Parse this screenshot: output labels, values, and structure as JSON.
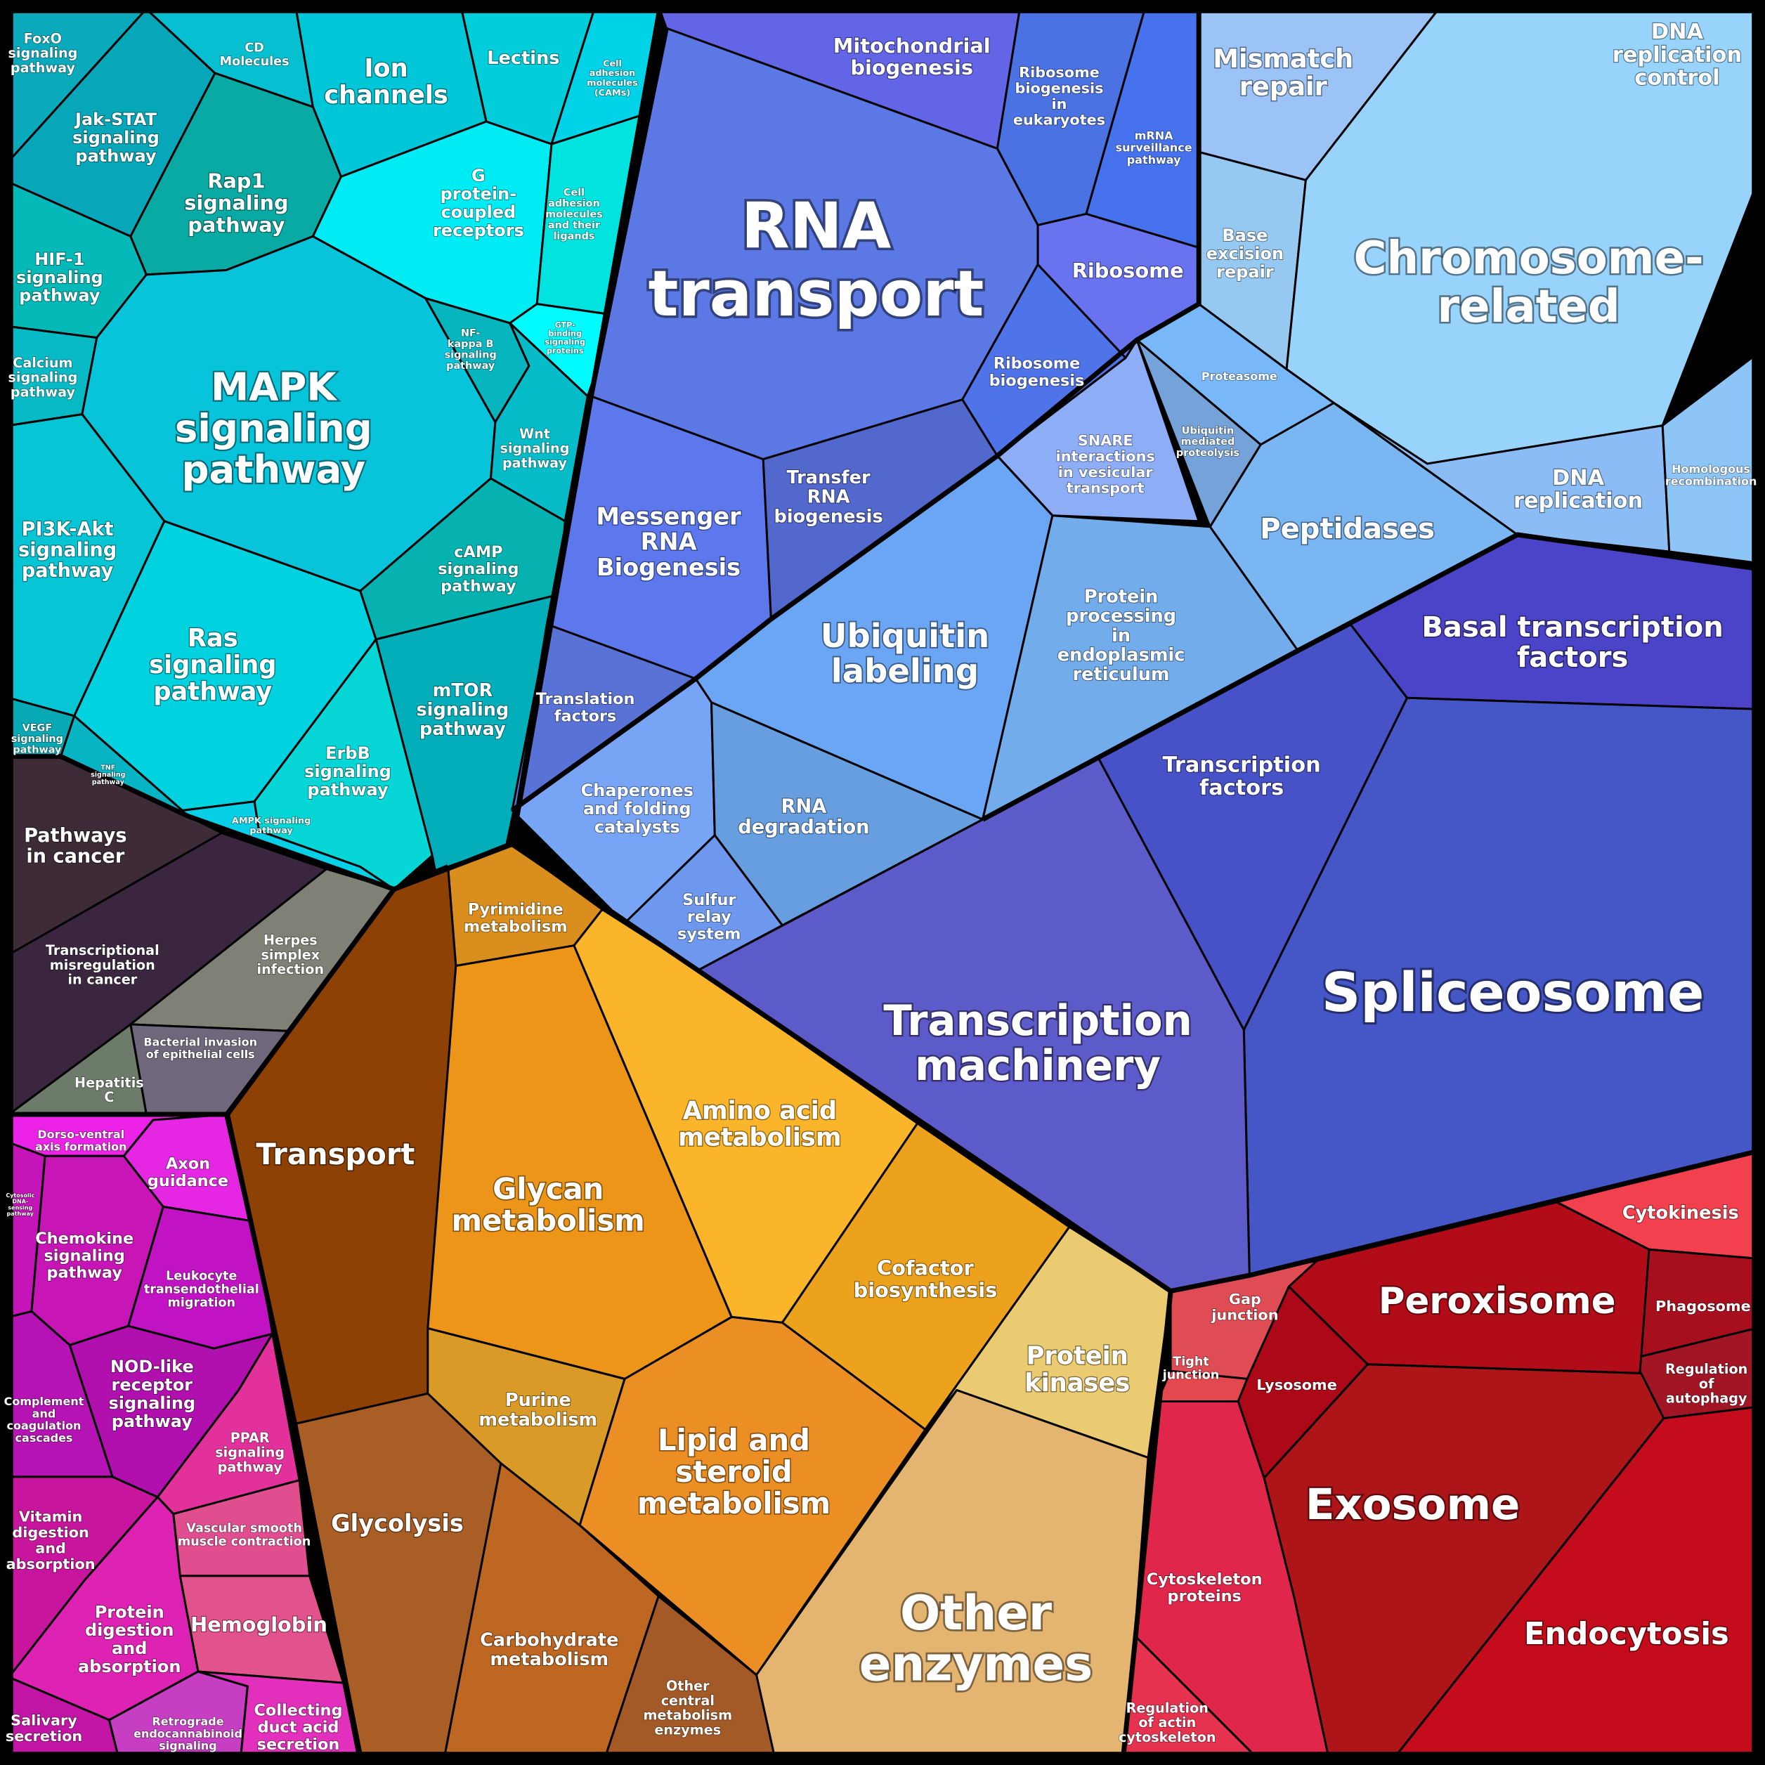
{
  "title": "",
  "groups": [
    {
      "id": "signaling",
      "cells": [
        {
          "label": [
            "FoxO",
            "signaling",
            "pathway"
          ],
          "color": "#0aa9bb"
        },
        {
          "label": [
            "Jak-STAT",
            "signaling",
            "pathway"
          ],
          "color": "#07a7b9"
        },
        {
          "label": [
            "CD",
            "Molecules"
          ],
          "color": "#06bfd0"
        },
        {
          "label": [
            "Ion",
            "channels"
          ],
          "color": "#00c7d8"
        },
        {
          "label": [
            "Lectins"
          ],
          "color": "#02cedb"
        },
        {
          "label": [
            "Cell",
            "adhesion",
            "molecules",
            "(CAMs)"
          ],
          "color": "#00d3e8"
        },
        {
          "label": [
            "Rap1",
            "signaling",
            "pathway"
          ],
          "color": "#08aaa3"
        },
        {
          "label": [
            "G",
            "protein-",
            "coupled",
            "receptors"
          ],
          "color": "#00ecf5"
        },
        {
          "label": [
            "Cell",
            "adhesion",
            "molecules",
            "and their",
            "ligands"
          ],
          "color": "#00e3df"
        },
        {
          "label": [
            "GTP-",
            "binding",
            "signaling",
            "proteins"
          ],
          "color": "#00fbff"
        },
        {
          "label": [
            "HIF-1",
            "signaling",
            "pathway"
          ],
          "color": "#04b9b8"
        },
        {
          "label": [
            "Calcium",
            "signaling",
            "pathway"
          ],
          "color": "#07bac6"
        },
        {
          "label": [
            "MAPK",
            "signaling",
            "pathway"
          ],
          "color": "#07c4db"
        },
        {
          "label": [
            "NF-",
            "kappa B",
            "signaling",
            "pathway"
          ],
          "color": "#07b5bf"
        },
        {
          "label": [
            "Wnt",
            "signaling",
            "pathway"
          ],
          "color": "#05bcc8"
        },
        {
          "label": [
            "PI3K-Akt",
            "signaling",
            "pathway"
          ],
          "color": "#06c5d5"
        },
        {
          "label": [
            "cAMP",
            "signaling",
            "pathway"
          ],
          "color": "#05b2b0"
        },
        {
          "label": [
            "Ras",
            "signaling",
            "pathway"
          ],
          "color": "#00d3df"
        },
        {
          "label": [
            "mTOR",
            "signaling",
            "pathway"
          ],
          "color": "#03aebb"
        },
        {
          "label": [
            "ErbB",
            "signaling",
            "pathway"
          ],
          "color": "#06d6d6"
        },
        {
          "label": [
            "VEGF",
            "signaling",
            "pathway"
          ],
          "color": "#06a9b4"
        },
        {
          "label": [
            "TNF",
            "signaling",
            "pathway"
          ],
          "color": "#07b4c3"
        },
        {
          "label": [
            "AMPK signaling",
            "pathway"
          ],
          "color": "#06cfe6"
        }
      ]
    },
    {
      "id": "disease",
      "cells": [
        {
          "label": [
            "Pathways",
            "in cancer"
          ],
          "color": "#3d2c37"
        },
        {
          "label": [
            "Transcriptional",
            "misregulation",
            "in cancer"
          ],
          "color": "#3b2640"
        },
        {
          "label": [
            "Herpes",
            "simplex",
            "infection"
          ],
          "color": "#7f8177"
        },
        {
          "label": [
            "Bacterial invasion",
            "of epithelial cells"
          ],
          "color": "#6f677b"
        },
        {
          "label": [
            "Hepatitis",
            "C"
          ],
          "color": "#6d7b6b"
        }
      ]
    },
    {
      "id": "organismal",
      "cells": [
        {
          "label": [
            "Dorso-ventral",
            "axis formation"
          ],
          "color": "#ed22e8"
        },
        {
          "label": [
            "Axon",
            "guidance"
          ],
          "color": "#e527e4"
        },
        {
          "label": [
            "Cytosolic",
            "DNA-",
            "sensing",
            "pathway"
          ],
          "color": "#c514b8"
        },
        {
          "label": [
            "Chemokine",
            "signaling",
            "pathway"
          ],
          "color": "#c715b6"
        },
        {
          "label": [
            "Leukocyte",
            "transendothelial",
            "migration"
          ],
          "color": "#c112c4"
        },
        {
          "label": [
            "Complement",
            "and",
            "coagulation",
            "cascades"
          ],
          "color": "#b513b4"
        },
        {
          "label": [
            "NOD-like",
            "receptor",
            "signaling",
            "pathway"
          ],
          "color": "#b10fae"
        },
        {
          "label": [
            "PPAR",
            "signaling",
            "pathway"
          ],
          "color": "#e2319a"
        },
        {
          "label": [
            "Vitamin",
            "digestion",
            "and",
            "absorption"
          ],
          "color": "#c7169d"
        },
        {
          "label": [
            "Vascular smooth",
            "muscle contraction"
          ],
          "color": "#e04e8f"
        },
        {
          "label": [
            "Protein",
            "digestion",
            "and",
            "absorption"
          ],
          "color": "#de22b3"
        },
        {
          "label": [
            "Hemoglobin"
          ],
          "color": "#e2528c"
        },
        {
          "label": [
            "Salivary",
            "secretion"
          ],
          "color": "#c215a5"
        },
        {
          "label": [
            "Retrograde",
            "endocannabinoid",
            "signaling"
          ],
          "color": "#c63fc3"
        },
        {
          "label": [
            "Collecting",
            "duct acid",
            "secretion"
          ],
          "color": "#e22fbc"
        }
      ]
    },
    {
      "id": "genetic-information",
      "cells": [
        {
          "label": [
            "Mitochondrial",
            "biogenesis"
          ],
          "color": "#6265e6"
        },
        {
          "label": [
            "Ribosome",
            "biogenesis",
            "in",
            "eukaryotes"
          ],
          "color": "#4a72e2"
        },
        {
          "label": [
            "mRNA",
            "surveillance",
            "pathway"
          ],
          "color": "#4672ee"
        },
        {
          "label": [
            "RNA",
            "transport"
          ],
          "color": "#5c78e4"
        },
        {
          "label": [
            "Ribosome"
          ],
          "color": "#6973f0"
        },
        {
          "label": [
            "Ribosome",
            "biogenesis"
          ],
          "color": "#4f73e9"
        },
        {
          "label": [
            "Messenger",
            "RNA",
            "Biogenesis"
          ],
          "color": "#5c78ec"
        },
        {
          "label": [
            "Transfer",
            "RNA",
            "biogenesis"
          ],
          "color": "#5268cc"
        },
        {
          "label": [
            "Translation",
            "factors"
          ],
          "color": "#5872d6"
        },
        {
          "label": [
            "Mismatch",
            "repair"
          ],
          "color": "#9bc3f6"
        },
        {
          "label": [
            "DNA",
            "replication",
            "control"
          ],
          "color": "#92c8ee"
        },
        {
          "label": [
            "Base",
            "excision",
            "repair"
          ],
          "color": "#95c9f2"
        },
        {
          "label": [
            "Chromosome-",
            "related"
          ],
          "color": "#97d3fb"
        },
        {
          "label": [
            "Proteasome"
          ],
          "color": "#79b8f8"
        },
        {
          "label": [
            "DNA",
            "replication"
          ],
          "color": "#8bbcf5"
        },
        {
          "label": [
            "Homologous",
            "recombination"
          ],
          "color": "#8ec5f7"
        },
        {
          "label": [
            "SNARE",
            "interactions",
            "in vesicular",
            "transport"
          ],
          "color": "#8dadf7"
        },
        {
          "label": [
            "Ubiquitin",
            "mediated",
            "proteolysis"
          ],
          "color": "#75a2d8"
        },
        {
          "label": [
            "Peptidases"
          ],
          "color": "#7ab6f2"
        },
        {
          "label": [
            "Ubiquitin",
            "labeling"
          ],
          "color": "#6aa6f4"
        },
        {
          "label": [
            "Protein",
            "processing",
            "in",
            "endoplasmic",
            "reticulum"
          ],
          "color": "#73acea"
        },
        {
          "label": [
            "Chaperones",
            "and folding",
            "catalysts"
          ],
          "color": "#77a4f5"
        },
        {
          "label": [
            "RNA",
            "degradation"
          ],
          "color": "#669ee0"
        },
        {
          "label": [
            "Sulfur",
            "relay",
            "system"
          ],
          "color": "#6d98ee"
        },
        {
          "label": [
            "Basal transcription",
            "factors"
          ],
          "color": "#4c44c8"
        },
        {
          "label": [
            "Transcription",
            "factors"
          ],
          "color": "#4752c9"
        },
        {
          "label": [
            "Spliceosome"
          ],
          "color": "#4557c6"
        },
        {
          "label": [
            "Transcription",
            "machinery"
          ],
          "color": "#5d5ac9"
        }
      ]
    },
    {
      "id": "metabolism",
      "cells": [
        {
          "label": [
            "Pyrimidine",
            "metabolism"
          ],
          "color": "#d98e1e"
        },
        {
          "label": [
            "Transport"
          ],
          "color": "#8e4104"
        },
        {
          "label": [
            "Glycan",
            "metabolism"
          ],
          "color": "#ec9518"
        },
        {
          "label": [
            "Amino acid",
            "metabolism"
          ],
          "color": "#fbb52b"
        },
        {
          "label": [
            "Cofactor",
            "biosynthesis"
          ],
          "color": "#eca21d"
        },
        {
          "label": [
            "Purine",
            "metabolism"
          ],
          "color": "#da9a27"
        },
        {
          "label": [
            "Lipid and",
            "steroid",
            "metabolism"
          ],
          "color": "#eb8e24"
        },
        {
          "label": [
            "Glycolysis"
          ],
          "color": "#a85e24"
        },
        {
          "label": [
            "Carbohydrate",
            "metabolism"
          ],
          "color": "#bd6722"
        },
        {
          "label": [
            "Other",
            "central",
            "metabolism",
            "enzymes"
          ],
          "color": "#a45a27"
        },
        {
          "label": [
            "Protein",
            "kinases"
          ],
          "color": "#ebcb72"
        },
        {
          "label": [
            "Other",
            "enzymes"
          ],
          "color": "#e3b571"
        }
      ]
    },
    {
      "id": "cellular-processes",
      "cells": [
        {
          "label": [
            "Cytokinesis"
          ],
          "color": "#f3404f"
        },
        {
          "label": [
            "Gap",
            "junction"
          ],
          "color": "#e04c53"
        },
        {
          "label": [
            "Peroxisome"
          ],
          "color": "#b20c18"
        },
        {
          "label": [
            "Tight",
            "junction"
          ],
          "color": "#e3484f"
        },
        {
          "label": [
            "Lysosome"
          ],
          "color": "#ad0817"
        },
        {
          "label": [
            "Phagosome"
          ],
          "color": "#a80f1c"
        },
        {
          "label": [
            "Regulation",
            "of",
            "autophagy"
          ],
          "color": "#a11524"
        },
        {
          "label": [
            "Exosome"
          ],
          "color": "#ad1519"
        },
        {
          "label": [
            "Cytoskeleton",
            "proteins"
          ],
          "color": "#e0264a"
        },
        {
          "label": [
            "Endocytosis"
          ],
          "color": "#c50c1d"
        },
        {
          "label": [
            "Regulation",
            "of actin",
            "cytoskeleton"
          ],
          "color": "#e5324e"
        }
      ]
    }
  ]
}
